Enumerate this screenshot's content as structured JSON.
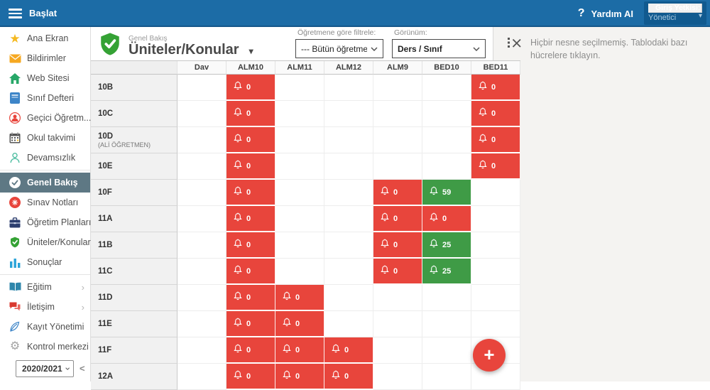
{
  "colors": {
    "topbar": "#1c6ca6",
    "topbar_box": "#115a8f",
    "red": "#e8453c",
    "green": "#3f9b46",
    "selected_item": "#5e7884",
    "fab": "#e8453c"
  },
  "topbar": {
    "menu_label": "Başlat",
    "help_icon": "?",
    "help_label": "Yardım AI",
    "role_label": "Giriş Yetkisi:",
    "role_value": "Yönetici"
  },
  "sidebar": {
    "items": [
      {
        "key": "ana-ekran",
        "icon": "star-icon",
        "label": "Ana Ekran"
      },
      {
        "key": "bildirimler",
        "icon": "envelope-icon",
        "label": "Bildirimler"
      },
      {
        "key": "web-sitesi",
        "icon": "home-icon",
        "label": "Web Sitesi"
      },
      {
        "key": "sinif-defteri",
        "icon": "book-icon",
        "label": "Sınıf Defteri"
      },
      {
        "key": "gecici-ogretmen",
        "icon": "person-circle-icon",
        "label": "Geçici Öğretm..."
      },
      {
        "key": "okul-takvimi",
        "icon": "calendar-icon",
        "label": "Okul takvimi"
      },
      {
        "key": "devamsizlik",
        "icon": "person-outline-icon",
        "label": "Devamsızlık"
      },
      {
        "key": "genel-bakis",
        "icon": "seal-check-icon",
        "label": "Genel Bakış",
        "selected": true,
        "divider_before": true
      },
      {
        "key": "sinav-notlari",
        "icon": "exam-circle-icon",
        "label": "Sınav Notları"
      },
      {
        "key": "ogretim-planlari",
        "icon": "briefcase-icon",
        "label": "Öğretim Planları"
      },
      {
        "key": "uniteler-konular",
        "icon": "shield-check-icon",
        "label": "Üniteler/Konular"
      },
      {
        "key": "sonuclar",
        "icon": "bar-chart-icon",
        "label": "Sonuçlar"
      },
      {
        "key": "egitim",
        "icon": "open-book-icon",
        "label": "Eğitim",
        "chevron": true,
        "divider_before": true
      },
      {
        "key": "iletisim",
        "icon": "chat-icon",
        "label": "İletişim",
        "chevron": true
      },
      {
        "key": "kayit-yonetimi",
        "icon": "pen-icon",
        "label": "Kayıt Yönetimi"
      },
      {
        "key": "kontrol-merkezi",
        "icon": "gear-icon",
        "label": "Kontrol merkezi"
      }
    ],
    "year_value": "2020/2021",
    "collapse_label": "<"
  },
  "toolbar": {
    "breadcrumb": "Genel Bakış",
    "title": "Üniteler/Konular",
    "title_caret": "▾",
    "filter_label": "Öğretmene göre filtrele:",
    "filter_value": "--- Bütün öğretmenler",
    "view_label": "Görünüm:",
    "view_value": "Ders / Sınıf"
  },
  "right_panel": {
    "message": "Hiçbir nesne seçilmemiş. Tablodaki bazı hücrelere tıklayın."
  },
  "grid": {
    "columns": [
      "",
      "Dav",
      "ALM10",
      "ALM11",
      "ALM12",
      "ALM9",
      "BED10",
      "BED11"
    ],
    "rows": [
      {
        "label": "10B",
        "cells": [
          null,
          {
            "c": "red",
            "v": "0"
          },
          null,
          null,
          null,
          null,
          {
            "c": "red",
            "v": "0"
          }
        ]
      },
      {
        "label": "10C",
        "cells": [
          null,
          {
            "c": "red",
            "v": "0"
          },
          null,
          null,
          null,
          null,
          {
            "c": "red",
            "v": "0"
          }
        ]
      },
      {
        "label": "10D",
        "sublabel": "(ALİ ÖĞRETMEN)",
        "cells": [
          null,
          {
            "c": "red",
            "v": "0"
          },
          null,
          null,
          null,
          null,
          {
            "c": "red",
            "v": "0"
          }
        ]
      },
      {
        "label": "10E",
        "cells": [
          null,
          {
            "c": "red",
            "v": "0"
          },
          null,
          null,
          null,
          null,
          {
            "c": "red",
            "v": "0"
          }
        ]
      },
      {
        "label": "10F",
        "cells": [
          null,
          {
            "c": "red",
            "v": "0"
          },
          null,
          null,
          {
            "c": "red",
            "v": "0"
          },
          {
            "c": "green",
            "v": "59"
          },
          null
        ]
      },
      {
        "label": "11A",
        "cells": [
          null,
          {
            "c": "red",
            "v": "0"
          },
          null,
          null,
          {
            "c": "red",
            "v": "0"
          },
          {
            "c": "red",
            "v": "0"
          },
          null
        ]
      },
      {
        "label": "11B",
        "cells": [
          null,
          {
            "c": "red",
            "v": "0"
          },
          null,
          null,
          {
            "c": "red",
            "v": "0"
          },
          {
            "c": "green",
            "v": "25"
          },
          null
        ]
      },
      {
        "label": "11C",
        "cells": [
          null,
          {
            "c": "red",
            "v": "0"
          },
          null,
          null,
          {
            "c": "red",
            "v": "0"
          },
          {
            "c": "green",
            "v": "25"
          },
          null
        ]
      },
      {
        "label": "11D",
        "cells": [
          null,
          {
            "c": "red",
            "v": "0"
          },
          {
            "c": "red",
            "v": "0"
          },
          null,
          null,
          null,
          null
        ]
      },
      {
        "label": "11E",
        "cells": [
          null,
          {
            "c": "red",
            "v": "0"
          },
          {
            "c": "red",
            "v": "0"
          },
          null,
          null,
          null,
          null
        ]
      },
      {
        "label": "11F",
        "cells": [
          null,
          {
            "c": "red",
            "v": "0"
          },
          {
            "c": "red",
            "v": "0"
          },
          {
            "c": "red",
            "v": "0"
          },
          null,
          null,
          null
        ]
      },
      {
        "label": "12A",
        "cells": [
          null,
          {
            "c": "red",
            "v": "0"
          },
          {
            "c": "red",
            "v": "0"
          },
          {
            "c": "red",
            "v": "0"
          },
          null,
          null,
          null
        ]
      }
    ]
  },
  "fab": {
    "label": "+"
  }
}
